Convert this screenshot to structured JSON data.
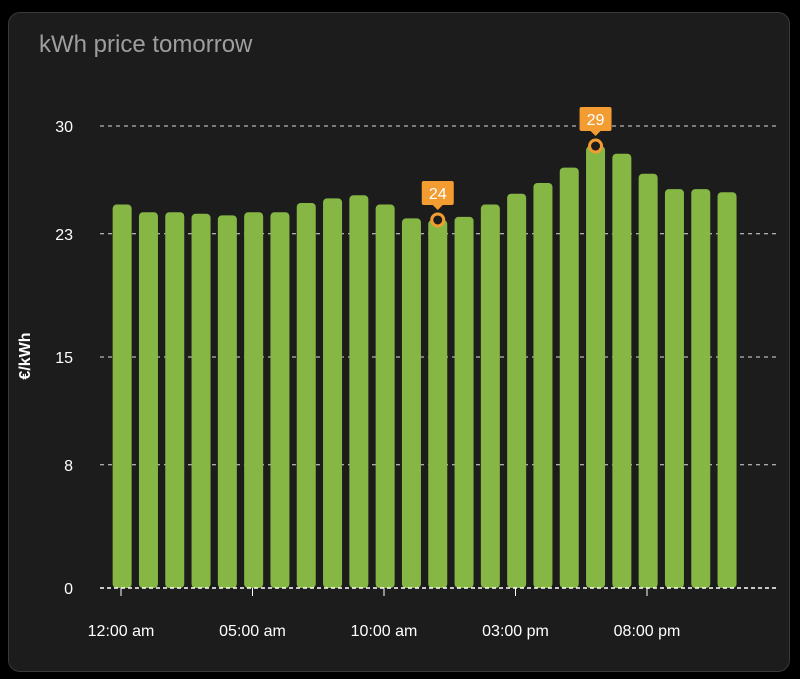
{
  "card": {
    "title": "kWh price tomorrow"
  },
  "colors": {
    "bar": "#86b745",
    "accent": "#f39c32",
    "grid": "#ffffff",
    "text": "#ffffff",
    "title": "#9e9e9e",
    "background": "#1c1c1c"
  },
  "chart_data": {
    "type": "bar",
    "title": "kWh price tomorrow",
    "ylabel": "€/kWh",
    "xlabel": "",
    "ylim": [
      0,
      31
    ],
    "yticks": [
      0,
      8,
      15,
      23,
      30
    ],
    "ytick_labels": [
      "0",
      "8",
      "15",
      "23",
      "30"
    ],
    "grid": true,
    "x_hours": [
      0,
      1,
      2,
      3,
      4,
      5,
      6,
      7,
      8,
      9,
      10,
      11,
      12,
      13,
      14,
      15,
      16,
      17,
      18,
      19,
      20,
      21,
      22,
      23
    ],
    "values": [
      24.9,
      24.4,
      24.4,
      24.3,
      24.2,
      24.4,
      24.4,
      25.0,
      25.3,
      25.5,
      24.9,
      24.0,
      23.9,
      24.1,
      24.9,
      25.6,
      26.3,
      27.3,
      28.7,
      28.2,
      26.9,
      25.9,
      25.9,
      25.7
    ],
    "xtick_hours": [
      0,
      5,
      10,
      15,
      20
    ],
    "xtick_labels": [
      "12:00 am",
      "05:00 am",
      "10:00 am",
      "03:00 pm",
      "08:00 pm"
    ],
    "annotations": [
      {
        "hour": 12,
        "value": 23.9,
        "label": "24"
      },
      {
        "hour": 18,
        "value": 28.7,
        "label": "29"
      }
    ]
  }
}
